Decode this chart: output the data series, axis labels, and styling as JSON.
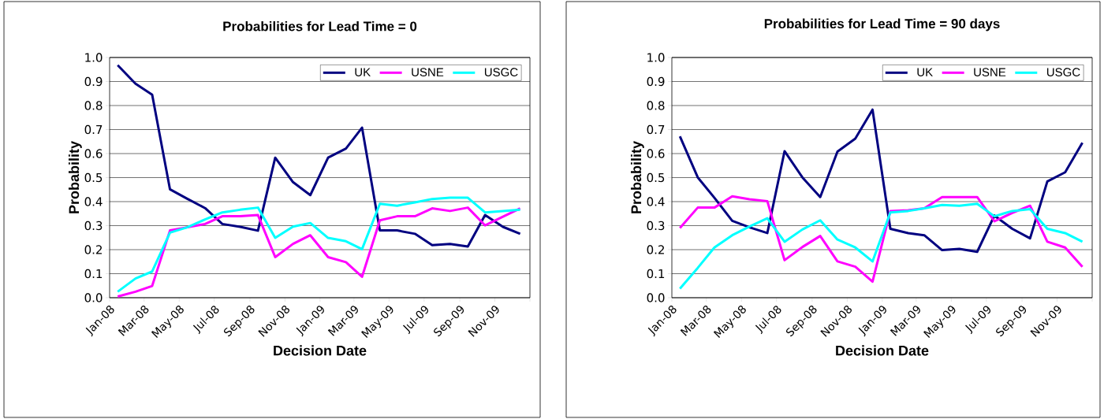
{
  "chart_data": [
    {
      "type": "line",
      "title": "Probabilities for Lead Time = 0",
      "xlabel": "Decision Date",
      "ylabel": "Probability",
      "x": [
        "2008-01-15",
        "2008-02-15",
        "2008-03-15",
        "2008-04-15",
        "2008-05-15",
        "2008-06-15",
        "2008-07-15",
        "2008-08-15",
        "2008-09-15",
        "2008-10-15",
        "2008-11-15",
        "2008-12-15",
        "2009-01-15",
        "2009-02-15",
        "2009-03-15",
        "2009-04-15",
        "2009-05-15",
        "2009-06-15",
        "2009-07-15",
        "2009-08-15",
        "2009-09-15",
        "2009-10-15",
        "2009-11-15",
        "2009-12-15"
      ],
      "series": [
        {
          "name": "UK",
          "color": "#000080",
          "values": [
            0.968,
            0.891,
            0.845,
            0.451,
            0.412,
            0.373,
            0.307,
            0.295,
            0.279,
            0.583,
            0.481,
            0.427,
            0.583,
            0.621,
            0.708,
            0.28,
            0.28,
            0.266,
            0.219,
            0.224,
            0.213,
            0.344,
            0.295,
            0.266
          ]
        },
        {
          "name": "USNE",
          "color": "#ff00ff",
          "values": [
            0.005,
            0.025,
            0.049,
            0.28,
            0.293,
            0.307,
            0.339,
            0.339,
            0.344,
            0.169,
            0.224,
            0.26,
            0.169,
            0.148,
            0.087,
            0.322,
            0.339,
            0.339,
            0.372,
            0.361,
            0.375,
            0.301,
            0.337,
            0.372
          ]
        },
        {
          "name": "USGC",
          "color": "#00ffff",
          "values": [
            0.025,
            0.08,
            0.109,
            0.271,
            0.293,
            0.326,
            0.355,
            0.366,
            0.375,
            0.249,
            0.296,
            0.311,
            0.249,
            0.235,
            0.202,
            0.391,
            0.383,
            0.397,
            0.411,
            0.416,
            0.416,
            0.355,
            0.361,
            0.366
          ]
        }
      ],
      "xlim": [
        "2008-01-01",
        "2010-01-01"
      ],
      "xticks": [
        {
          "value": "2008-01-01",
          "label": "Jan-08"
        },
        {
          "value": "2008-03-01",
          "label": "Mar-08"
        },
        {
          "value": "2008-05-01",
          "label": "May-08"
        },
        {
          "value": "2008-07-01",
          "label": "Jul-08"
        },
        {
          "value": "2008-09-01",
          "label": "Sep-08"
        },
        {
          "value": "2008-11-01",
          "label": "Nov-08"
        },
        {
          "value": "2009-01-01",
          "label": "Jan-09"
        },
        {
          "value": "2009-03-01",
          "label": "Mar-09"
        },
        {
          "value": "2009-05-01",
          "label": "May-09"
        },
        {
          "value": "2009-07-01",
          "label": "Jul-09"
        },
        {
          "value": "2009-09-01",
          "label": "Sep-09"
        },
        {
          "value": "2009-11-01",
          "label": "Nov-09"
        },
        {
          "value": "2010-01-01",
          "label": null
        }
      ],
      "ylim": [
        0,
        1
      ],
      "yticks": [
        {
          "value": 0,
          "label": "0.0"
        },
        {
          "value": 0.1,
          "label": "0.1"
        },
        {
          "value": 0.2,
          "label": "0.2"
        },
        {
          "value": 0.3,
          "label": "0.3"
        },
        {
          "value": 0.4,
          "label": "0.4"
        },
        {
          "value": 0.5,
          "label": "0.5"
        },
        {
          "value": 0.6,
          "label": "0.6"
        },
        {
          "value": 0.7,
          "label": "0.7"
        },
        {
          "value": 0.8,
          "label": "0.8"
        },
        {
          "value": 0.9,
          "label": "0.9"
        },
        {
          "value": 1,
          "label": "1.0"
        }
      ],
      "grid": "y",
      "legend": "top right"
    },
    {
      "type": "line",
      "title": "Probabilities for Lead Time = 90 days",
      "xlabel": "Decision Date",
      "ylabel": "Probability",
      "x": [
        "2008-01-15",
        "2008-02-15",
        "2008-03-15",
        "2008-04-15",
        "2008-05-15",
        "2008-06-15",
        "2008-07-15",
        "2008-08-15",
        "2008-09-15",
        "2008-10-15",
        "2008-11-15",
        "2008-12-15",
        "2009-01-15",
        "2009-02-15",
        "2009-03-15",
        "2009-04-15",
        "2009-05-15",
        "2009-06-15",
        "2009-07-15",
        "2009-08-15",
        "2009-09-15",
        "2009-10-15",
        "2009-11-15",
        "2009-12-15"
      ],
      "series": [
        {
          "name": "UK",
          "color": "#000080",
          "values": [
            0.672,
            0.501,
            0.416,
            0.32,
            0.293,
            0.269,
            0.61,
            0.501,
            0.419,
            0.608,
            0.662,
            0.783,
            0.287,
            0.269,
            0.26,
            0.198,
            0.203,
            0.191,
            0.342,
            0.287,
            0.247,
            0.484,
            0.522,
            0.645
          ]
        },
        {
          "name": "USNE",
          "color": "#ff00ff",
          "values": [
            0.29,
            0.375,
            0.375,
            0.422,
            0.41,
            0.402,
            0.156,
            0.211,
            0.257,
            0.151,
            0.129,
            0.067,
            0.361,
            0.364,
            0.372,
            0.419,
            0.419,
            0.419,
            0.318,
            0.353,
            0.383,
            0.233,
            0.209,
            0.129
          ]
        },
        {
          "name": "USGC",
          "color": "#00ffff",
          "values": [
            0.038,
            0.124,
            0.209,
            0.26,
            0.296,
            0.331,
            0.233,
            0.284,
            0.322,
            0.242,
            0.209,
            0.151,
            0.355,
            0.361,
            0.372,
            0.386,
            0.383,
            0.391,
            0.339,
            0.361,
            0.369,
            0.287,
            0.269,
            0.233
          ]
        }
      ],
      "xlim": [
        "2008-01-01",
        "2010-01-01"
      ],
      "xticks": [
        {
          "value": "2008-01-01",
          "label": "Jan-08"
        },
        {
          "value": "2008-03-01",
          "label": "Mar-08"
        },
        {
          "value": "2008-05-01",
          "label": "May-08"
        },
        {
          "value": "2008-07-01",
          "label": "Jul-08"
        },
        {
          "value": "2008-09-01",
          "label": "Sep-08"
        },
        {
          "value": "2008-11-01",
          "label": "Nov-08"
        },
        {
          "value": "2009-01-01",
          "label": "Jan-09"
        },
        {
          "value": "2009-03-01",
          "label": "Mar-09"
        },
        {
          "value": "2009-05-01",
          "label": "May-09"
        },
        {
          "value": "2009-07-01",
          "label": "Jul-09"
        },
        {
          "value": "2009-09-01",
          "label": "Sep-09"
        },
        {
          "value": "2009-11-01",
          "label": "Nov-09"
        },
        {
          "value": "2010-01-01",
          "label": null
        }
      ],
      "ylim": [
        0,
        1
      ],
      "yticks": [
        {
          "value": 0,
          "label": "0.0"
        },
        {
          "value": 0.1,
          "label": "0.1"
        },
        {
          "value": 0.2,
          "label": "0.2"
        },
        {
          "value": 0.3,
          "label": "0.3"
        },
        {
          "value": 0.4,
          "label": "0.4"
        },
        {
          "value": 0.5,
          "label": "0.5"
        },
        {
          "value": 0.6,
          "label": "0.6"
        },
        {
          "value": 0.7,
          "label": "0.7"
        },
        {
          "value": 0.8,
          "label": "0.8"
        },
        {
          "value": 0.9,
          "label": "0.9"
        },
        {
          "value": 1,
          "label": "1.0"
        }
      ],
      "grid": "y",
      "legend": "top right"
    }
  ]
}
